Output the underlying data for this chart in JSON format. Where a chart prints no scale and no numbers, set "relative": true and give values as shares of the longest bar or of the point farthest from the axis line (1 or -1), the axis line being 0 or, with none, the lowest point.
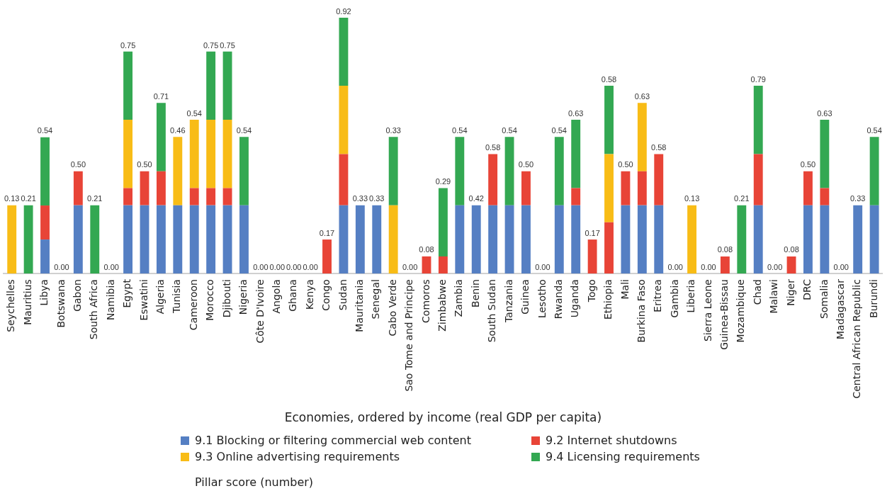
{
  "chart_data": {
    "type": "bar",
    "stacked": true,
    "relative": true,
    "xlabel": "Economies, ordered by income (real GDP per capita)",
    "legend": "bottom",
    "legend_title": "Pillar score (number)",
    "grid": false,
    "categories": [
      "Seychelles",
      "Mauritius",
      "Libya",
      "Botswana",
      "Gabon",
      "South Africa",
      "Namibia",
      "Egypt",
      "Eswatini",
      "Algeria",
      "Tunisia",
      "Cameroon",
      "Morocco",
      "Djibouti",
      "Nigeria",
      "Côte D'Ivoire",
      "Angola",
      "Ghana",
      "Kenya",
      "Congo",
      "Sudan",
      "Mauritania",
      "Senegal",
      "Cabo Verde",
      "Sao Tome and Principe",
      "Comoros",
      "Zimbabwe",
      "Zambia",
      "Benin",
      "South Sudan",
      "Tanzania",
      "Guinea",
      "Lesotho",
      "Rwanda",
      "Uganda",
      "Togo",
      "Ethiopia",
      "Mali",
      "Burkina Faso",
      "Eritrea",
      "Gambia",
      "Liberia",
      "Sierra Leone",
      "Guinea-Bissau",
      "Mozambique",
      "Chad",
      "Malawi",
      "Niger",
      "DRC",
      "Somalia",
      "Madagascar",
      "Central African Republic",
      "Burundi"
    ],
    "series": [
      {
        "name": "9.1 Blocking or filtering commercial web content",
        "color": "#557fc3",
        "values": [
          0,
          0,
          0.133,
          0,
          0.267,
          0,
          0,
          0.267,
          0.267,
          0.267,
          0.267,
          0.267,
          0.267,
          0.267,
          0.267,
          0,
          0,
          0,
          0,
          0,
          0.267,
          0.267,
          0.267,
          0,
          0,
          0,
          0,
          0.267,
          0.267,
          0.267,
          0.267,
          0.267,
          0,
          0.267,
          0.267,
          0,
          0,
          0.267,
          0.267,
          0.267,
          0,
          0,
          0,
          0,
          0,
          0.267,
          0,
          0,
          0.267,
          0.267,
          0,
          0.267,
          0.267
        ]
      },
      {
        "name": "9.2 Internet shutdowns",
        "color": "#e84437",
        "values": [
          0,
          0,
          0.133,
          0,
          0.133,
          0,
          0,
          0.067,
          0.133,
          0.133,
          0,
          0.067,
          0.067,
          0.067,
          0,
          0,
          0,
          0,
          0,
          0.133,
          0.2,
          0,
          0,
          0,
          0,
          0.067,
          0.067,
          0,
          0,
          0.2,
          0,
          0.133,
          0,
          0,
          0.067,
          0.133,
          0.2,
          0.133,
          0.133,
          0.2,
          0,
          0,
          0,
          0.067,
          0,
          0.2,
          0,
          0.067,
          0.133,
          0.067,
          0,
          0,
          0
        ]
      },
      {
        "name": "9.3 Online advertising requirements",
        "color": "#f8bc16",
        "values": [
          0.267,
          0,
          0,
          0,
          0,
          0,
          0,
          0.267,
          0,
          0,
          0.267,
          0.267,
          0.267,
          0.267,
          0,
          0,
          0,
          0,
          0,
          0,
          0.267,
          0,
          0,
          0.267,
          0,
          0,
          0,
          0,
          0,
          0,
          0,
          0,
          0,
          0,
          0,
          0,
          0.267,
          0,
          0.267,
          0,
          0,
          0.267,
          0,
          0,
          0,
          0,
          0,
          0,
          0,
          0,
          0,
          0,
          0
        ]
      },
      {
        "name": "9.4 Licensing requirements",
        "color": "#33a852",
        "values": [
          0,
          0.267,
          0.267,
          0,
          0,
          0.267,
          0,
          0.267,
          0,
          0.267,
          0,
          0,
          0.267,
          0.267,
          0.267,
          0,
          0,
          0,
          0,
          0,
          0.266,
          0,
          0,
          0.267,
          0,
          0,
          0.267,
          0.267,
          0,
          0,
          0.267,
          0,
          0,
          0.267,
          0.267,
          0,
          0.267,
          0,
          0,
          0,
          0,
          0,
          0,
          0,
          0.267,
          0.267,
          0,
          0,
          0,
          0.267,
          0,
          0,
          0.267
        ]
      }
    ],
    "annotations": [
      {
        "text": "0.13",
        "x": "Seychelles",
        "y": 0.267
      },
      {
        "text": "0.21",
        "x": "Mauritius",
        "y": 0.267
      },
      {
        "text": "0.54",
        "x": "Libya",
        "y": 0.533
      },
      {
        "text": "0.00",
        "x": "Botswana",
        "y": 0
      },
      {
        "text": "0.50",
        "x": "Gabon",
        "y": 0.4
      },
      {
        "text": "0.21",
        "x": "South Africa",
        "y": 0.267
      },
      {
        "text": "0.00",
        "x": "Namibia",
        "y": 0
      },
      {
        "text": "0.75",
        "x": "Egypt",
        "y": 0.867
      },
      {
        "text": "0.50",
        "x": "Eswatini",
        "y": 0.4
      },
      {
        "text": "0.71",
        "x": "Algeria",
        "y": 0.667
      },
      {
        "text": "0.46",
        "x": "Tunisia",
        "y": 0.533
      },
      {
        "text": "0.54",
        "x": "Cameroon",
        "y": 0.6
      },
      {
        "text": "0.75",
        "x": "Morocco",
        "y": 0.867
      },
      {
        "text": "0.75",
        "x": "Djibouti",
        "y": 0.867
      },
      {
        "text": "0.54",
        "x": "Nigeria",
        "y": 0.533
      },
      {
        "text": "0.00",
        "x": "Côte D'Ivoire",
        "y": 0
      },
      {
        "text": "0.00",
        "x": "Angola",
        "y": 0
      },
      {
        "text": "0.00",
        "x": "Ghana",
        "y": 0
      },
      {
        "text": "0.00",
        "x": "Kenya",
        "y": 0
      },
      {
        "text": "0.17",
        "x": "Congo",
        "y": 0.133
      },
      {
        "text": "0.92",
        "x": "Sudan",
        "y": 1
      },
      {
        "text": "0.33",
        "x": "Mauritania",
        "y": 0.267
      },
      {
        "text": "0.33",
        "x": "Senegal",
        "y": 0.267
      },
      {
        "text": "0.33",
        "x": "Cabo Verde",
        "y": 0.533
      },
      {
        "text": "0.00",
        "x": "Sao Tome and Principe",
        "y": 0
      },
      {
        "text": "0.08",
        "x": "Comoros",
        "y": 0.067
      },
      {
        "text": "0.29",
        "x": "Zimbabwe",
        "y": 0.333
      },
      {
        "text": "0.54",
        "x": "Zambia",
        "y": 0.533
      },
      {
        "text": "0.42",
        "x": "Benin",
        "y": 0.267
      },
      {
        "text": "0.58",
        "x": "South Sudan",
        "y": 0.467
      },
      {
        "text": "0.54",
        "x": "Tanzania",
        "y": 0.533
      },
      {
        "text": "0.50",
        "x": "Guinea",
        "y": 0.4
      },
      {
        "text": "0.00",
        "x": "Lesotho",
        "y": 0
      },
      {
        "text": "0.54",
        "x": "Rwanda",
        "y": 0.533
      },
      {
        "text": "0.63",
        "x": "Uganda",
        "y": 0.6
      },
      {
        "text": "0.17",
        "x": "Togo",
        "y": 0.133
      },
      {
        "text": "0.58",
        "x": "Ethiopia",
        "y": 0.733
      },
      {
        "text": "0.50",
        "x": "Mali",
        "y": 0.4
      },
      {
        "text": "0.63",
        "x": "Burkina Faso",
        "y": 0.667
      },
      {
        "text": "0.58",
        "x": "Eritrea",
        "y": 0.467
      },
      {
        "text": "0.00",
        "x": "Gambia",
        "y": 0
      },
      {
        "text": "0.13",
        "x": "Liberia",
        "y": 0.267
      },
      {
        "text": "0.00",
        "x": "Sierra Leone",
        "y": 0
      },
      {
        "text": "0.08",
        "x": "Guinea-Bissau",
        "y": 0.067
      },
      {
        "text": "0.21",
        "x": "Mozambique",
        "y": 0.267
      },
      {
        "text": "0.79",
        "x": "Chad",
        "y": 0.733
      },
      {
        "text": "0.00",
        "x": "Malawi",
        "y": 0
      },
      {
        "text": "0.08",
        "x": "Niger",
        "y": 0.067
      },
      {
        "text": "0.50",
        "x": "DRC",
        "y": 0.4
      },
      {
        "text": "0.63",
        "x": "Somalia",
        "y": 0.6
      },
      {
        "text": "0.00",
        "x": "Madagascar",
        "y": 0
      },
      {
        "text": "0.33",
        "x": "Central African Republic",
        "y": 0.267
      },
      {
        "text": "0.54",
        "x": "Burundi",
        "y": 0.533
      }
    ]
  }
}
